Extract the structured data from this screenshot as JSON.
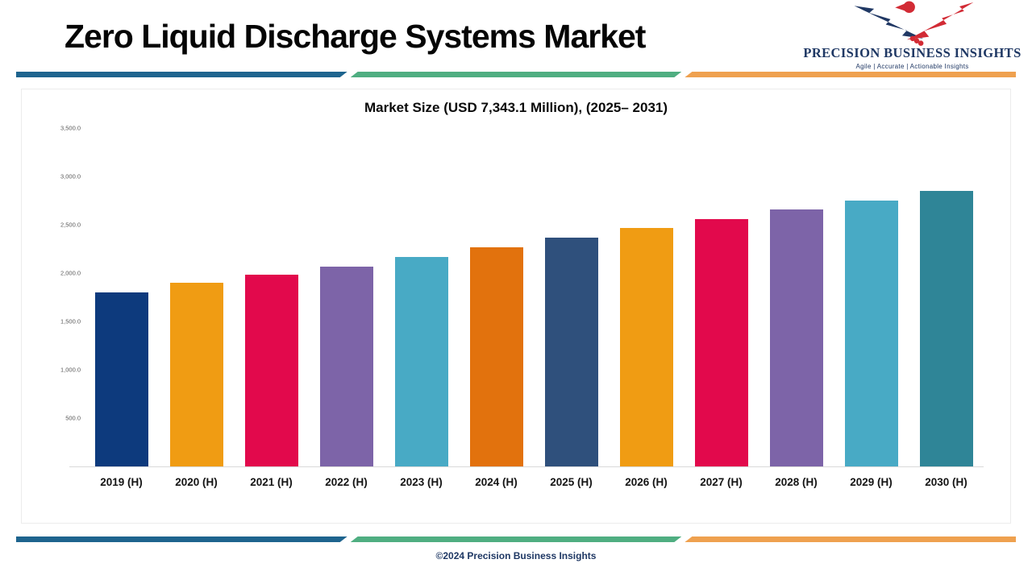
{
  "page": {
    "title": "Zero Liquid Discharge Systems Market",
    "footer": "©2024 Precision Business Insights"
  },
  "logo": {
    "name": "PRECISION BUSINESS INSIGHTS",
    "tagline": "Agile | Accurate | Actionable Insights",
    "colors": {
      "navy": "#203864",
      "red": "#d22b35"
    }
  },
  "divider_colors": [
    "#1e648e",
    "#4fae81",
    "#efa14f"
  ],
  "chart_data": {
    "type": "bar",
    "title": "Market Size (USD 7,343.1 Million), (2025– 2031)",
    "categories": [
      "2019 (H)",
      "2020 (H)",
      "2021 (H)",
      "2022 (H)",
      "2023 (H)",
      "2024 (H)",
      "2025 (H)",
      "2026 (H)",
      "2027 (H)",
      "2028 (H)",
      "2029 (H)",
      "2030 (H)"
    ],
    "values": [
      1800,
      1900,
      1980,
      2070,
      2170,
      2270,
      2370,
      2470,
      2560,
      2660,
      2750,
      2850
    ],
    "bar_colors": [
      "#0d3a7d",
      "#f09c13",
      "#e2094c",
      "#7d64a8",
      "#48aac5",
      "#e2720d",
      "#2f507c",
      "#f09c13",
      "#e2094c",
      "#7d64a8",
      "#48aac5",
      "#2f8597"
    ],
    "xlabel": "",
    "ylabel": "",
    "ylim": [
      0,
      3500
    ],
    "ytick_step": 500,
    "yticks": [
      "3,500.0",
      "3,000.0",
      "2,500.0",
      "2,000.0",
      "1,500.0",
      "1,000.0",
      "500.0",
      "-"
    ],
    "grid": false,
    "legend": false
  }
}
